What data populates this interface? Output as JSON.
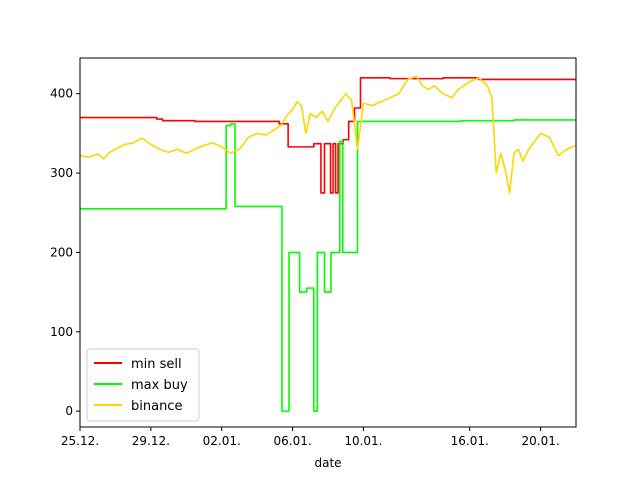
{
  "chart_data": {
    "type": "line",
    "title": "",
    "xlabel": "date",
    "ylabel": "",
    "x_ticks": [
      "25.12.",
      "29.12.",
      "02.01.",
      "06.01.",
      "10.01.",
      "16.01.",
      "20.01."
    ],
    "y_ticks": [
      "0",
      "100",
      "200",
      "300",
      "400"
    ],
    "xlim": [
      "25.12.",
      "22.01."
    ],
    "ylim": [
      -20,
      445
    ],
    "grid": false,
    "legend_position": "lower-left",
    "series": [
      {
        "name": "min sell",
        "color": "#ff0000",
        "style": "step",
        "points": [
          [
            "25.12.",
            370
          ],
          [
            "29.12.",
            370
          ],
          [
            "29.12.",
            368
          ],
          [
            "29.12.",
            366
          ],
          [
            "30.12.",
            366
          ],
          [
            "31.12.",
            366
          ],
          [
            "31.12.",
            365
          ],
          [
            "05.01.",
            365
          ],
          [
            "05.01.",
            362
          ],
          [
            "05.01.",
            362
          ],
          [
            "05.01.",
            333
          ],
          [
            "06.01.",
            333
          ],
          [
            "07.01.",
            333
          ],
          [
            "07.01.",
            337
          ],
          [
            "07.01.",
            337
          ],
          [
            "07.01.",
            275
          ],
          [
            "07.01.",
            337
          ],
          [
            "08.01.",
            337
          ],
          [
            "08.01.",
            275
          ],
          [
            "08.01.",
            337
          ],
          [
            "08.01.",
            275
          ],
          [
            "08.01.",
            337
          ],
          [
            "08.01.",
            337
          ],
          [
            "08.01.",
            342
          ],
          [
            "09.01.",
            342
          ],
          [
            "09.01.",
            365
          ],
          [
            "09.01.",
            365
          ],
          [
            "09.01.",
            382
          ],
          [
            "09.01.",
            382
          ],
          [
            "09.01.",
            420
          ],
          [
            "10.01.",
            420
          ],
          [
            "11.01.",
            420
          ],
          [
            "11.01.",
            419
          ],
          [
            "14.01.",
            419
          ],
          [
            "14.01.",
            420
          ],
          [
            "16.01.",
            420
          ],
          [
            "16.01.",
            418
          ],
          [
            "22.01.",
            418
          ]
        ]
      },
      {
        "name": "max buy",
        "color": "#00ff00",
        "style": "step",
        "points": [
          [
            "25.12.",
            255
          ],
          [
            "02.01.",
            255
          ],
          [
            "02.01.",
            360
          ],
          [
            "02.01.",
            362
          ],
          [
            "02.01.",
            258
          ],
          [
            "05.01.",
            258
          ],
          [
            "05.01.",
            258
          ],
          [
            "05.01.",
            0
          ],
          [
            "05.01.",
            0
          ],
          [
            "05.01.",
            200
          ],
          [
            "06.01.",
            200
          ],
          [
            "06.01.",
            200
          ],
          [
            "06.01.",
            150
          ],
          [
            "06.01.",
            150
          ],
          [
            "06.01.",
            155
          ],
          [
            "07.01.",
            155
          ],
          [
            "07.01.",
            0
          ],
          [
            "07.01.",
            200
          ],
          [
            "07.01.",
            200
          ],
          [
            "07.01.",
            150
          ],
          [
            "08.01.",
            150
          ],
          [
            "08.01.",
            200
          ],
          [
            "08.01.",
            200
          ],
          [
            "08.01.",
            200
          ],
          [
            "08.01.",
            340
          ],
          [
            "08.01.",
            200
          ],
          [
            "09.01.",
            200
          ],
          [
            "09.01.",
            200
          ],
          [
            "09.01.",
            365
          ],
          [
            "10.01.",
            365
          ],
          [
            "15.01.",
            365
          ],
          [
            "15.01.",
            366
          ],
          [
            "18.01.",
            366
          ],
          [
            "18.01.",
            367
          ],
          [
            "22.01.",
            367
          ]
        ]
      },
      {
        "name": "binance",
        "color": "#ffd700",
        "style": "line",
        "points": [
          [
            "25.12.",
            322
          ],
          [
            "25.12.",
            320
          ],
          [
            "26.12.",
            324
          ],
          [
            "26.12.",
            318
          ],
          [
            "26.12.",
            326
          ],
          [
            "27.12.",
            330
          ],
          [
            "27.12.",
            336
          ],
          [
            "28.12.",
            338
          ],
          [
            "28.12.",
            344
          ],
          [
            "29.12.",
            336
          ],
          [
            "29.12.",
            330
          ],
          [
            "30.12.",
            326
          ],
          [
            "30.12.",
            330
          ],
          [
            "31.12.",
            325
          ],
          [
            "31.12.",
            330
          ],
          [
            "01.01.",
            335
          ],
          [
            "01.01.",
            338
          ],
          [
            "02.01.",
            333
          ],
          [
            "02.01.",
            325
          ],
          [
            "03.01.",
            330
          ],
          [
            "03.01.",
            345
          ],
          [
            "04.01.",
            350
          ],
          [
            "04.01.",
            348
          ],
          [
            "05.01.",
            355
          ],
          [
            "05.01.",
            360
          ],
          [
            "05.01.",
            372
          ],
          [
            "06.01.",
            380
          ],
          [
            "06.01.",
            390
          ],
          [
            "06.01.",
            385
          ],
          [
            "06.01.",
            350
          ],
          [
            "07.01.",
            375
          ],
          [
            "07.01.",
            370
          ],
          [
            "07.01.",
            378
          ],
          [
            "08.01.",
            365
          ],
          [
            "08.01.",
            380
          ],
          [
            "08.01.",
            390
          ],
          [
            "09.01.",
            400
          ],
          [
            "09.01.",
            392
          ],
          [
            "09.01.",
            330
          ],
          [
            "10.01.",
            388
          ],
          [
            "10.01.",
            385
          ],
          [
            "11.01.",
            390
          ],
          [
            "11.01.",
            395
          ],
          [
            "12.01.",
            400
          ],
          [
            "12.01.",
            418
          ],
          [
            "13.01.",
            422
          ],
          [
            "13.01.",
            410
          ],
          [
            "13.01.",
            405
          ],
          [
            "14.01.",
            410
          ],
          [
            "14.01.",
            400
          ],
          [
            "15.01.",
            395
          ],
          [
            "15.01.",
            405
          ],
          [
            "15.01.",
            410
          ],
          [
            "16.01.",
            415
          ],
          [
            "16.01.",
            420
          ],
          [
            "17.01.",
            410
          ],
          [
            "17.01.",
            395
          ],
          [
            "17.01.",
            300
          ],
          [
            "17.01.",
            325
          ],
          [
            "18.01.",
            305
          ],
          [
            "18.01.",
            275
          ],
          [
            "18.01.",
            325
          ],
          [
            "18.01.",
            330
          ],
          [
            "19.01.",
            315
          ],
          [
            "19.01.",
            330
          ],
          [
            "19.01.",
            340
          ],
          [
            "20.01.",
            350
          ],
          [
            "20.01.",
            345
          ],
          [
            "21.01.",
            322
          ],
          [
            "21.01.",
            330
          ],
          [
            "22.01.",
            335
          ]
        ]
      }
    ]
  }
}
